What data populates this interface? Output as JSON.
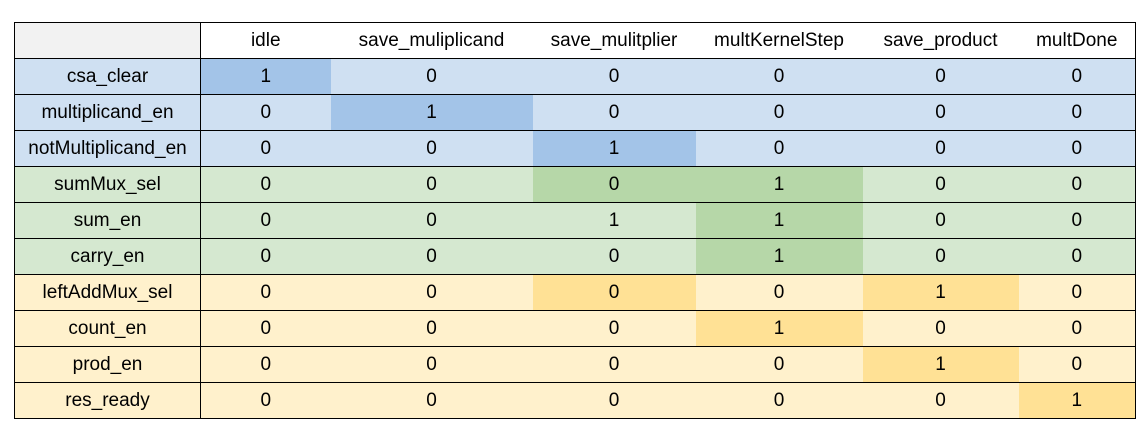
{
  "table": {
    "columns": [
      "idle",
      "save_muliplicand",
      "save_mulitplier",
      "multKernelStep",
      "save_product",
      "multDone"
    ],
    "rows": [
      {
        "label": "csa_clear",
        "group": "blue",
        "values": [
          "1",
          "0",
          "0",
          "0",
          "0",
          "0"
        ],
        "highlight": [
          0
        ]
      },
      {
        "label": "multiplicand_en",
        "group": "blue",
        "values": [
          "0",
          "1",
          "0",
          "0",
          "0",
          "0"
        ],
        "highlight": [
          1
        ]
      },
      {
        "label": "notMultiplicand_en",
        "group": "blue",
        "values": [
          "0",
          "0",
          "1",
          "0",
          "0",
          "0"
        ],
        "highlight": [
          2
        ]
      },
      {
        "label": "sumMux_sel",
        "group": "green",
        "values": [
          "0",
          "0",
          "0",
          "1",
          "0",
          "0"
        ],
        "highlight": [
          2,
          3
        ]
      },
      {
        "label": "sum_en",
        "group": "green",
        "values": [
          "0",
          "0",
          "1",
          "1",
          "0",
          "0"
        ],
        "highlight": [
          3
        ]
      },
      {
        "label": "carry_en",
        "group": "green",
        "values": [
          "0",
          "0",
          "0",
          "1",
          "0",
          "0"
        ],
        "highlight": [
          3
        ]
      },
      {
        "label": "leftAddMux_sel",
        "group": "yellow",
        "values": [
          "0",
          "0",
          "0",
          "0",
          "1",
          "0"
        ],
        "highlight": [
          2,
          4
        ]
      },
      {
        "label": "count_en",
        "group": "yellow",
        "values": [
          "0",
          "0",
          "0",
          "1",
          "0",
          "0"
        ],
        "highlight": [
          3
        ]
      },
      {
        "label": "prod_en",
        "group": "yellow",
        "values": [
          "0",
          "0",
          "0",
          "0",
          "1",
          "0"
        ],
        "highlight": [
          4
        ]
      },
      {
        "label": "res_ready",
        "group": "yellow",
        "values": [
          "0",
          "0",
          "0",
          "0",
          "0",
          "1"
        ],
        "highlight": [
          5
        ]
      }
    ]
  },
  "colors": {
    "blue": "#cfe0f2",
    "blue_highlight": "#a3c4e8",
    "green": "#d5e8d0",
    "green_highlight": "#b6d7a8",
    "yellow": "#fff1cc",
    "yellow_highlight": "#ffe195"
  }
}
